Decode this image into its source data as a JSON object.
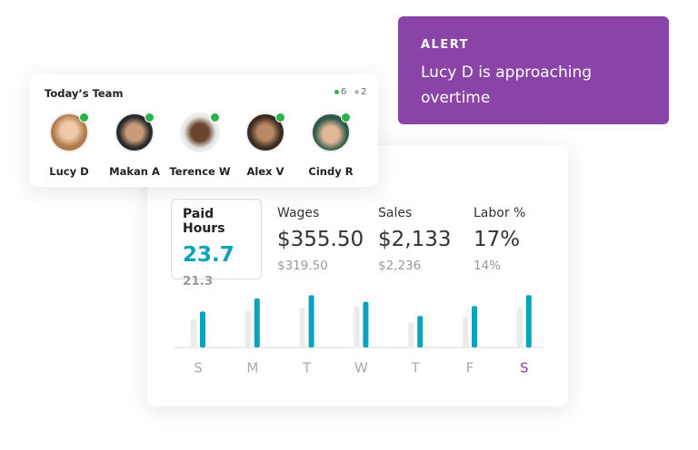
{
  "alert": {
    "title": "ALERT",
    "message": "Lucy D is approaching overtime"
  },
  "team": {
    "title": "Today’s Team",
    "online_count": 6,
    "offline_count": 2,
    "members": [
      {
        "name": "Lucy D"
      },
      {
        "name": "Makan A"
      },
      {
        "name": "Terence W"
      },
      {
        "name": "Alex V"
      },
      {
        "name": "Cindy R"
      }
    ]
  },
  "metrics": [
    {
      "label": "Paid Hours",
      "value": "23.7",
      "previous": "21.3"
    },
    {
      "label": "Wages",
      "value": "$355.50",
      "previous": "$319.50"
    },
    {
      "label": "Sales",
      "value": "$2,133",
      "previous": "$2,236"
    },
    {
      "label": "Labor %",
      "value": "17%",
      "previous": "14%"
    }
  ],
  "chart": {
    "type": "bar",
    "categories": [
      "S",
      "M",
      "T",
      "W",
      "T",
      "F",
      "S"
    ],
    "ylim": [
      0,
      50
    ],
    "series": [
      {
        "color": "#ebebeb",
        "values": [
          26,
          34,
          36,
          38,
          23,
          28,
          36
        ]
      },
      {
        "color": "#0aa2bd",
        "values": [
          33,
          45,
          48,
          42,
          29,
          38,
          48
        ]
      }
    ]
  }
}
